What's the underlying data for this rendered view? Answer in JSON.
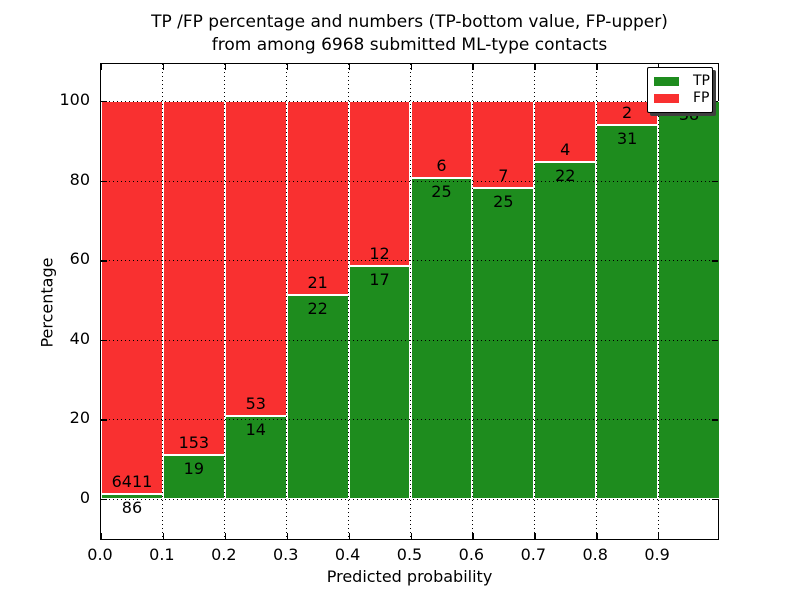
{
  "figure": {
    "background": "#ffffff"
  },
  "title": {
    "line1": "TP /FP percentage and numbers (TP-bottom value, FP-upper)",
    "line2": "from among 6968 submitted ML-type contacts"
  },
  "legend": {
    "entries": [
      {
        "label": "TP",
        "color": "#1e8c1e"
      },
      {
        "label": "FP",
        "color": "#f93030"
      }
    ]
  },
  "chart_data": {
    "type": "bar",
    "subtype": "stacked-percentage",
    "title": "TP /FP percentage and numbers (TP-bottom value, FP-upper) from among 6968 submitted ML-type contacts",
    "xlabel": "Predicted probability",
    "ylabel": "Percentage",
    "total_contacts_in_title": 6968,
    "xlim": [
      0.0,
      1.0
    ],
    "ylim_percent": [
      -10.6,
      109.3
    ],
    "grid": "dotted",
    "legend_position": "upper right",
    "xticks": [
      "0.0",
      "0.1",
      "0.2",
      "0.3",
      "0.4",
      "0.5",
      "0.6",
      "0.7",
      "0.8",
      "0.9"
    ],
    "yticks": [
      0,
      20,
      40,
      60,
      80,
      100
    ],
    "bin_width": 0.1,
    "categories": [
      "0.0-0.1",
      "0.1-0.2",
      "0.2-0.3",
      "0.3-0.4",
      "0.4-0.5",
      "0.5-0.6",
      "0.6-0.7",
      "0.7-0.8",
      "0.8-0.9",
      "0.9-1.0"
    ],
    "series": [
      {
        "name": "TP",
        "color": "#1e8c1e",
        "values": [
          86,
          19,
          14,
          22,
          17,
          25,
          25,
          22,
          31,
          38
        ]
      },
      {
        "name": "FP",
        "color": "#f93030",
        "values": [
          6411,
          153,
          53,
          21,
          12,
          6,
          7,
          4,
          2,
          0
        ]
      }
    ],
    "tp_percent": [
      1.3,
      11.0,
      20.9,
      51.2,
      58.6,
      80.6,
      78.1,
      84.6,
      93.9,
      100.0
    ],
    "bar_labels": {
      "tp": [
        "86",
        "19",
        "14",
        "22",
        "17",
        "25",
        "25",
        "22",
        "31",
        "38"
      ],
      "fp": [
        "6411",
        "153",
        "53",
        "21",
        "12",
        "6",
        "7",
        "4",
        "2",
        ""
      ]
    }
  }
}
